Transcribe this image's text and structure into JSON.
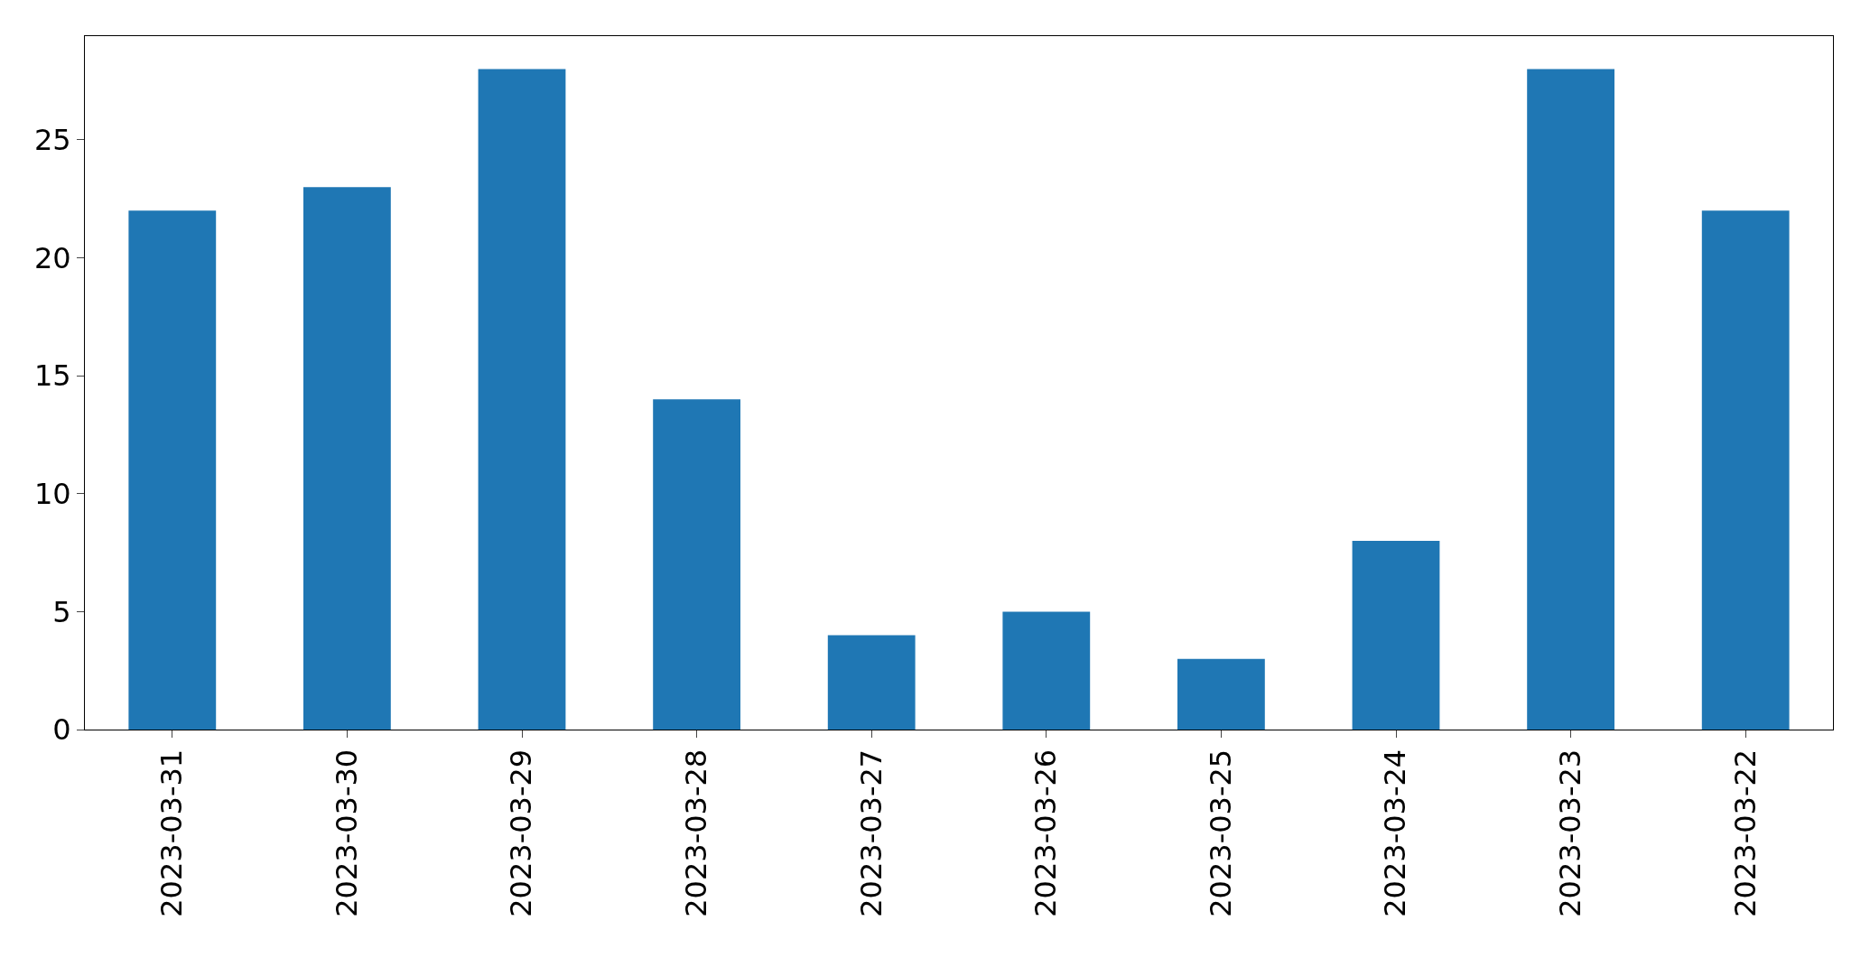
{
  "chart_data": {
    "type": "bar",
    "categories": [
      "2023-03-31",
      "2023-03-30",
      "2023-03-29",
      "2023-03-28",
      "2023-03-27",
      "2023-03-26",
      "2023-03-25",
      "2023-03-24",
      "2023-03-23",
      "2023-03-22"
    ],
    "values": [
      22,
      23,
      28,
      14,
      4,
      5,
      3,
      8,
      28,
      22
    ],
    "color": "#1f77b4",
    "ylim": [
      0,
      29.4
    ],
    "yticks": [
      0,
      5,
      10,
      15,
      20,
      25
    ]
  }
}
